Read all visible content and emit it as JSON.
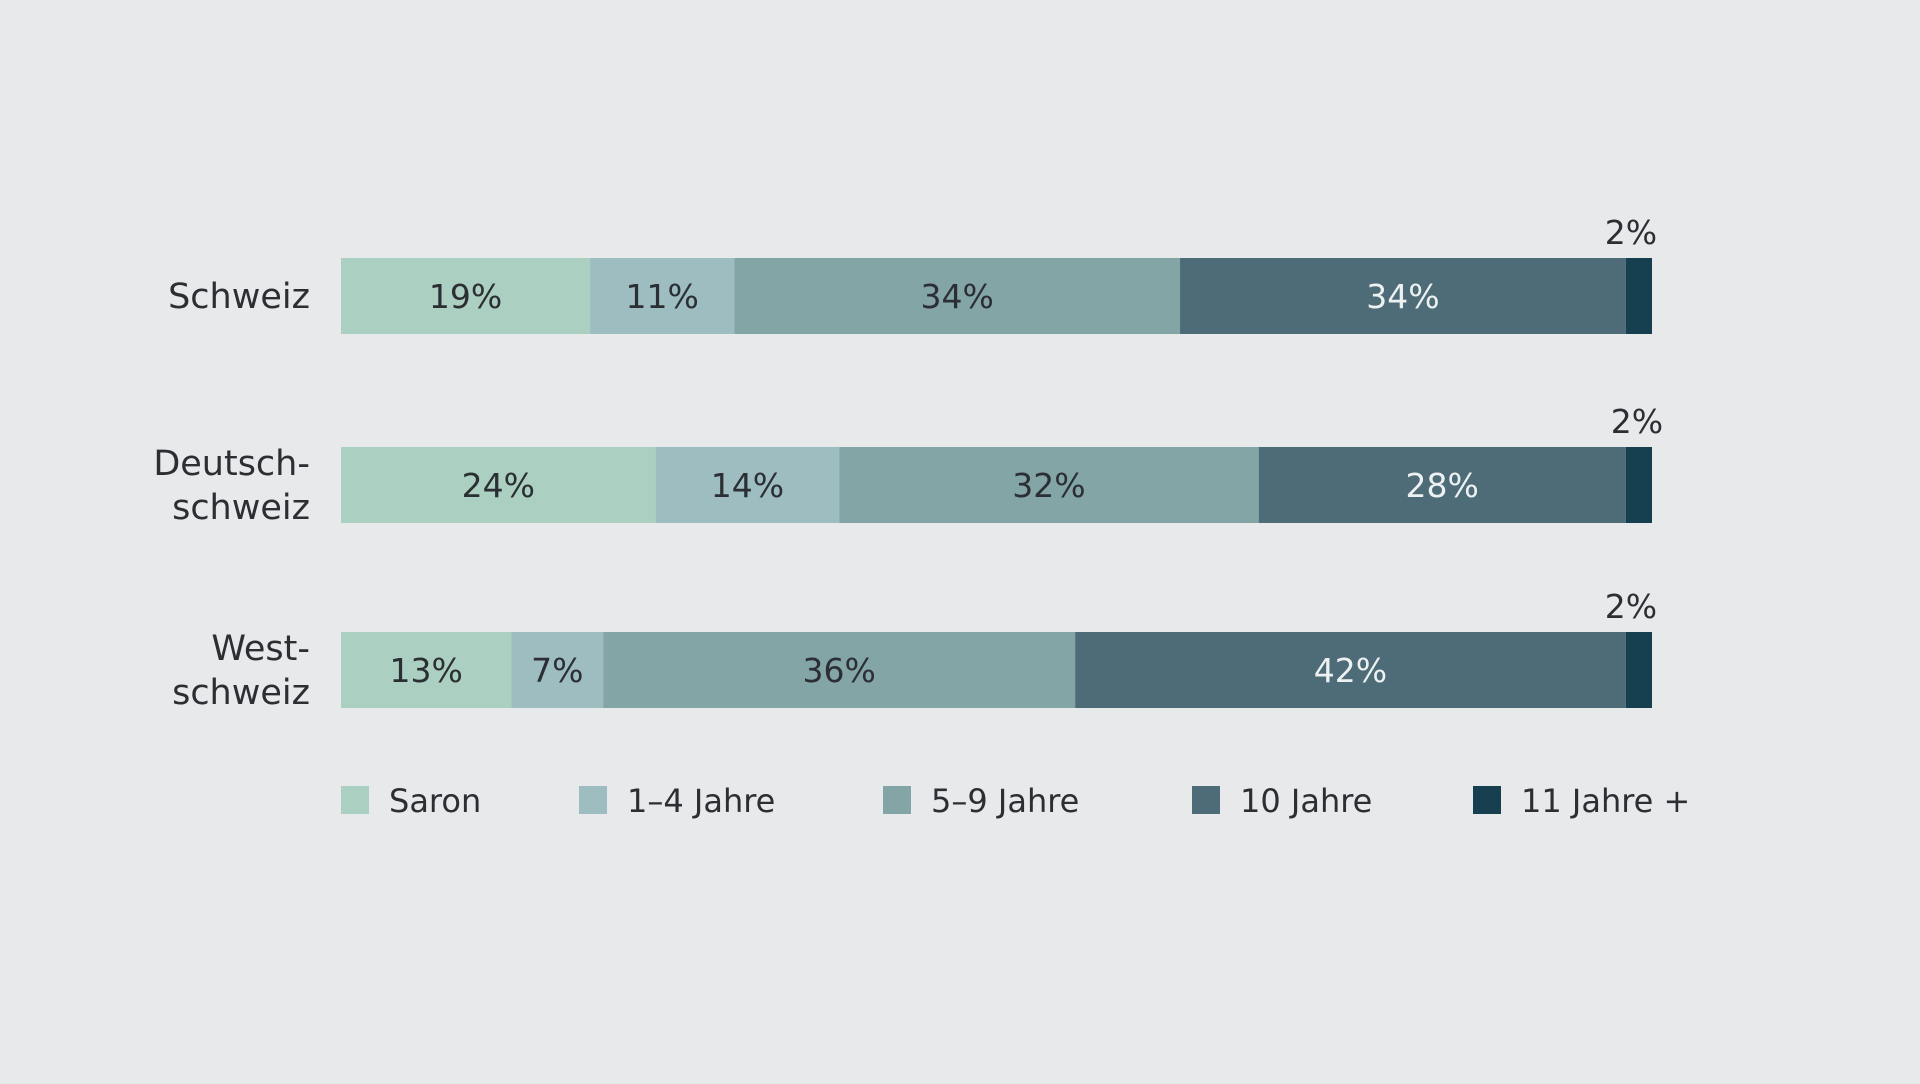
{
  "chart_data": {
    "type": "bar",
    "orientation": "horizontal",
    "stacked": true,
    "title": "",
    "xlabel": "",
    "ylabel": "",
    "xlim": [
      0,
      100
    ],
    "grid": false,
    "legend_position": "bottom",
    "categories": [
      [
        "Schweiz"
      ],
      [
        "Deutsch-",
        "schweiz"
      ],
      [
        "West-",
        "schweiz"
      ]
    ],
    "series": [
      {
        "name": "Saron",
        "color": "#abcfc0",
        "values": [
          19,
          24,
          13
        ],
        "labels": [
          "19%",
          "24%",
          "13%"
        ]
      },
      {
        "name": "1–4 Jahre",
        "color": "#9ebdc0",
        "values": [
          11,
          14,
          7
        ],
        "labels": [
          "11%",
          "14%",
          "7%"
        ]
      },
      {
        "name": "5–9 Jahre",
        "color": "#84a5a5",
        "values": [
          34,
          32,
          36
        ],
        "labels": [
          "34%",
          "32%",
          "36%"
        ]
      },
      {
        "name": "10 Jahre",
        "color": "#4d6c77",
        "values": [
          34,
          28,
          42
        ],
        "labels": [
          "34%",
          "28%",
          "42%"
        ]
      },
      {
        "name": "11 Jahre +",
        "color": "#163f4f",
        "values": [
          2,
          2,
          2
        ],
        "labels": [
          "2%",
          "2%",
          "2%"
        ]
      }
    ]
  }
}
